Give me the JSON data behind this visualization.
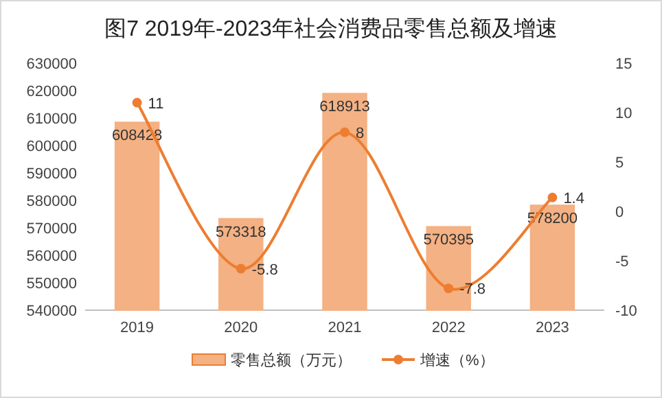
{
  "chart_data": {
    "type": "bar",
    "title": "图7  2019年-2023年社会消费品零售总额及增速",
    "categories": [
      "2019",
      "2020",
      "2021",
      "2022",
      "2023"
    ],
    "series": [
      {
        "name": "零售总额（万元）",
        "color": "#f4b183",
        "values": [
          608428,
          573318,
          618913,
          570395,
          578200
        ]
      },
      {
        "name": "增速（%）",
        "type": "line",
        "axis": "y2",
        "color": "#ed7d31",
        "values": [
          11,
          -5.8,
          8,
          -7.8,
          1.4
        ]
      }
    ],
    "ylim": [
      540000,
      630000
    ],
    "yticks": [
      540000,
      550000,
      560000,
      570000,
      580000,
      590000,
      600000,
      610000,
      620000,
      630000
    ],
    "y2lim": [
      -10,
      15
    ],
    "y2ticks": [
      -10,
      -5,
      0,
      5,
      10,
      15
    ],
    "marker": "circle",
    "data_labels": true,
    "legend": "bottom",
    "grid": false
  }
}
